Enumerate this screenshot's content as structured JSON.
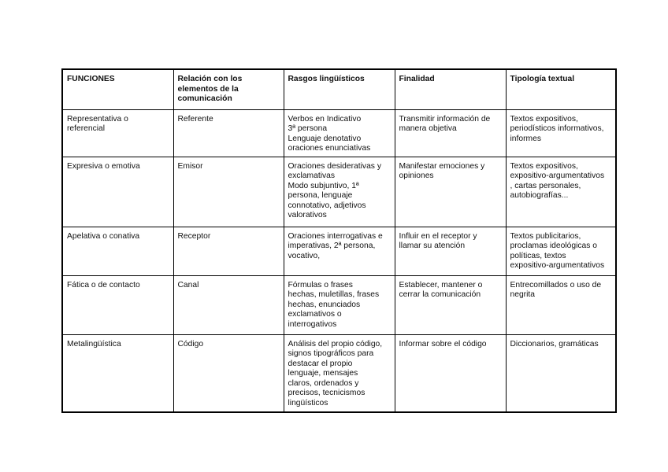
{
  "table": {
    "headers": [
      "FUNCIONES",
      "Relación con los\nelementos de la\ncomunicación",
      "Rasgos lingüísticos",
      "Finalidad",
      "Tipología textual"
    ],
    "rows": [
      [
        "Representativa o\nreferencial",
        "Referente",
        "Verbos en Indicativo\n3ª persona\nLenguaje denotativo\noraciones enunciativas",
        "Transmitir información de\nmanera objetiva",
        "Textos expositivos,\nperiodísticos informativos,\ninformes"
      ],
      [
        "Expresiva o emotiva",
        "Emisor",
        "Oraciones desiderativas y\nexclamativas\nModo subjuntivo, 1ª\npersona, lenguaje\nconnotativo, adjetivos\nvalorativos",
        "Manifestar emociones y\nopiniones",
        "Textos expositivos,\nexpositivo-argumentativos\n, cartas personales,\nautobiografías..."
      ],
      [
        "Apelativa o conativa",
        "Receptor",
        "Oraciones interrogativas e\nimperativas, 2ª persona,\nvocativo,",
        "Influir en el receptor y\nllamar su atención",
        "Textos publicitarios,\nproclamas ideológicas o\npolíticas, textos\nexpositivo-argumentativos"
      ],
      [
        "Fática o de contacto",
        "Canal",
        "Fórmulas o frases\nhechas, muletillas, frases\nhechas, enunciados\nexclamativos o\ninterrogativos",
        "Establecer, mantener o\ncerrar la comunicación",
        "Entrecomillados o uso de\nnegrita"
      ],
      [
        "Metalingüística",
        "Código",
        "Análisis del propio código,\nsignos tipográficos para\ndestacar el propio\nlenguaje, mensajes\nclaros, ordenados y\nprecisos, tecnicismos\nlingüísticos",
        "Informar sobre el código",
        "Diccionarios, gramáticas"
      ]
    ]
  }
}
